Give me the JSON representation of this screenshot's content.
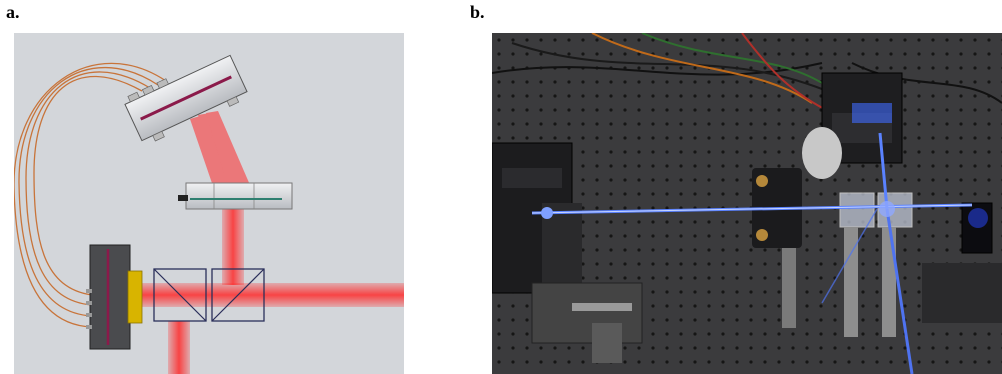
{
  "figure": {
    "panel_a": {
      "label": "a.",
      "subject": "optical-setup-schematic",
      "colors": {
        "background": "#d3d6da",
        "beam": "#ff2a2a",
        "fiber": "#c8743a",
        "crystal": "#d8b400",
        "stripe": "#8b1a4a"
      }
    },
    "panel_b": {
      "label": "b.",
      "subject": "optical-table-photograph",
      "colors": {
        "table": "#3b3b3d",
        "laser": "#3f6bff"
      }
    }
  }
}
